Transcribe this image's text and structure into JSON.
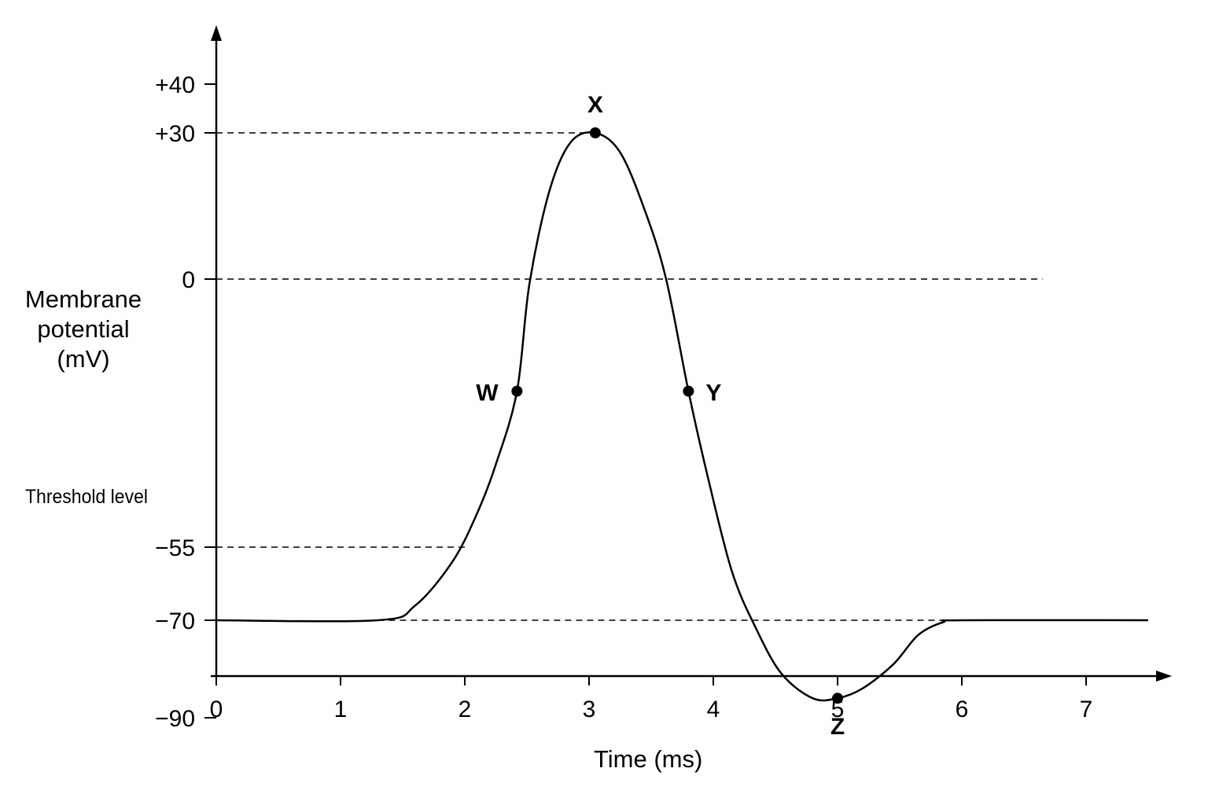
{
  "chart_data": {
    "type": "line",
    "xlabel": "Time (ms)",
    "ylabel_lines": [
      "Membrane",
      "potential",
      "(mV)"
    ],
    "threshold_label": "Threshold level",
    "x_ticks": [
      0,
      1,
      2,
      3,
      4,
      5,
      6,
      7
    ],
    "x_tick_labels": [
      "0",
      "1",
      "2",
      "3",
      "4",
      "5",
      "6",
      "7"
    ],
    "y_ticks": [
      40,
      30,
      0,
      -55,
      -70,
      -90
    ],
    "y_tick_labels": [
      "+40",
      "+30",
      "0",
      "−55",
      "−70",
      "−90"
    ],
    "xlim": [
      0,
      7.5
    ],
    "ylim": [
      -90,
      44
    ],
    "grid": false,
    "reference_lines": [
      {
        "y": 30,
        "x_start": 0,
        "x_end": 3.05,
        "style": "dashed"
      },
      {
        "y": 0,
        "x_start": 0,
        "x_end": 6.65,
        "style": "dashed"
      },
      {
        "y": -55,
        "x_start": 0,
        "x_end": 2.0,
        "style": "dashed"
      },
      {
        "y": -70,
        "x_start": 1.3,
        "x_end": 5.9,
        "style": "dashed"
      }
    ],
    "series": [
      {
        "x": [
          0,
          1.3,
          1.6,
          1.9,
          2.1,
          2.25,
          2.42,
          2.52,
          2.68,
          2.85,
          3.05,
          3.25,
          3.45,
          3.62,
          3.8,
          3.95,
          4.15,
          4.35,
          4.55,
          4.8,
          5.0,
          5.2,
          5.45,
          5.65,
          5.85,
          6.0,
          7.5
        ],
        "y": [
          -70,
          -70,
          -67,
          -58,
          -48,
          -38,
          -23,
          -1,
          18,
          28,
          30,
          26,
          14,
          0,
          -23,
          -40,
          -60,
          -72,
          -81,
          -86,
          -86,
          -84,
          -79,
          -73,
          -70.4,
          -70,
          -70
        ]
      }
    ],
    "points": [
      {
        "label": "W",
        "x": 2.42,
        "y": -23
      },
      {
        "label": "X",
        "x": 3.05,
        "y": 30
      },
      {
        "label": "Y",
        "x": 3.8,
        "y": -23
      },
      {
        "label": "Z",
        "x": 5.0,
        "y": -86
      }
    ]
  }
}
